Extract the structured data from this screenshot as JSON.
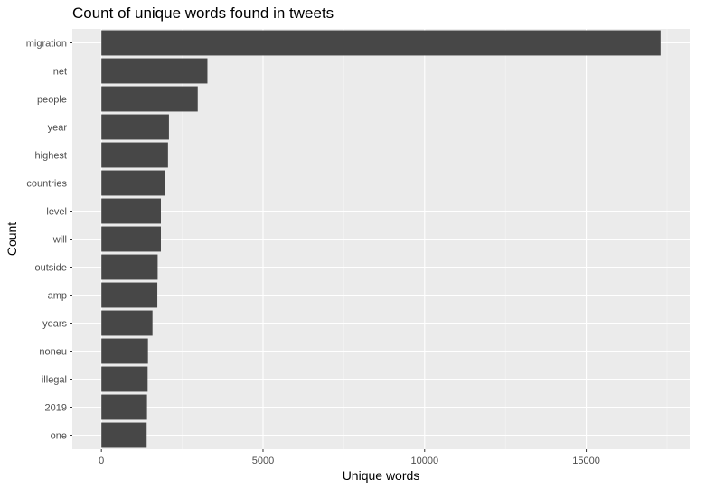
{
  "chart_data": {
    "type": "bar",
    "orientation": "horizontal",
    "title": "Count of unique words found in tweets",
    "xlabel": "Unique words",
    "ylabel": "Count",
    "categories": [
      "migration",
      "net",
      "people",
      "year",
      "highest",
      "countries",
      "level",
      "will",
      "outside",
      "amp",
      "years",
      "noneu",
      "illegal",
      "2019",
      "one"
    ],
    "values": [
      17300,
      3280,
      2980,
      2090,
      2060,
      1960,
      1840,
      1840,
      1740,
      1730,
      1580,
      1440,
      1430,
      1410,
      1400
    ],
    "xlim": [
      -900,
      18200
    ],
    "xticks": [
      0,
      5000,
      10000,
      15000
    ],
    "xtick_labels": [
      "0",
      "5000",
      "10000",
      "15000"
    ],
    "grid": true,
    "legend": "none",
    "colors": {
      "bar": "#474747",
      "panel": "#ebebeb",
      "grid_major": "#ffffff",
      "grid_minor": "#f5f5f5"
    }
  }
}
